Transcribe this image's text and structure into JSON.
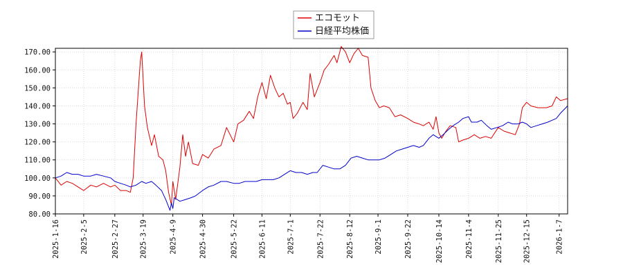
{
  "chart_data": {
    "type": "line",
    "title": "",
    "xlabel": "",
    "ylabel": "",
    "ylim": [
      80,
      172
    ],
    "xlim": [
      "2025-01-16",
      "2026-01-13"
    ],
    "grid": true,
    "legend_position": "top-center",
    "y_ticks": [
      80,
      90,
      100,
      110,
      120,
      130,
      140,
      150,
      160,
      170
    ],
    "y_tick_labels": [
      "80.00",
      "90.00",
      "100.00",
      "110.00",
      "120.00",
      "130.00",
      "140.00",
      "150.00",
      "160.00",
      "170.00"
    ],
    "x_ticks": [
      "2025-1-16",
      "2025-2-5",
      "2025-2-27",
      "2025-3-19",
      "2025-4-9",
      "2025-4-30",
      "2025-5-22",
      "2025-6-11",
      "2025-7-1",
      "2025-7-22",
      "2025-8-12",
      "2025-9-1",
      "2025-9-22",
      "2025-10-14",
      "2025-11-4",
      "2025-11-25",
      "2025-12-15",
      "2026-1-7"
    ],
    "series": [
      {
        "name": "エコモット",
        "color": "#dd0000",
        "points": [
          [
            "2025-01-16",
            100
          ],
          [
            "2025-01-20",
            96
          ],
          [
            "2025-01-24",
            98
          ],
          [
            "2025-01-28",
            97
          ],
          [
            "2025-02-01",
            95
          ],
          [
            "2025-02-05",
            93
          ],
          [
            "2025-02-10",
            96
          ],
          [
            "2025-02-14",
            95
          ],
          [
            "2025-02-19",
            97
          ],
          [
            "2025-02-24",
            95
          ],
          [
            "2025-02-27",
            96
          ],
          [
            "2025-03-03",
            93
          ],
          [
            "2025-03-07",
            93
          ],
          [
            "2025-03-10",
            92
          ],
          [
            "2025-03-12",
            100
          ],
          [
            "2025-03-14",
            130
          ],
          [
            "2025-03-17",
            165
          ],
          [
            "2025-03-18",
            170
          ],
          [
            "2025-03-20",
            140
          ],
          [
            "2025-03-22",
            128
          ],
          [
            "2025-03-25",
            118
          ],
          [
            "2025-03-27",
            124
          ],
          [
            "2025-03-30",
            112
          ],
          [
            "2025-04-02",
            110
          ],
          [
            "2025-04-04",
            104
          ],
          [
            "2025-04-06",
            92
          ],
          [
            "2025-04-08",
            85
          ],
          [
            "2025-04-09",
            98
          ],
          [
            "2025-04-11",
            88
          ],
          [
            "2025-04-14",
            106
          ],
          [
            "2025-04-16",
            124
          ],
          [
            "2025-04-18",
            112
          ],
          [
            "2025-04-20",
            120
          ],
          [
            "2025-04-23",
            108
          ],
          [
            "2025-04-27",
            107
          ],
          [
            "2025-04-30",
            113
          ],
          [
            "2025-05-04",
            111
          ],
          [
            "2025-05-08",
            116
          ],
          [
            "2025-05-13",
            118
          ],
          [
            "2025-05-17",
            128
          ],
          [
            "2025-05-22",
            120
          ],
          [
            "2025-05-25",
            130
          ],
          [
            "2025-05-29",
            132
          ],
          [
            "2025-06-02",
            137
          ],
          [
            "2025-06-05",
            133
          ],
          [
            "2025-06-08",
            145
          ],
          [
            "2025-06-11",
            153
          ],
          [
            "2025-06-14",
            144
          ],
          [
            "2025-06-17",
            157
          ],
          [
            "2025-06-20",
            150
          ],
          [
            "2025-06-23",
            145
          ],
          [
            "2025-06-26",
            147
          ],
          [
            "2025-06-29",
            141
          ],
          [
            "2025-07-01",
            142
          ],
          [
            "2025-07-03",
            133
          ],
          [
            "2025-07-06",
            136
          ],
          [
            "2025-07-10",
            142
          ],
          [
            "2025-07-13",
            138
          ],
          [
            "2025-07-15",
            158
          ],
          [
            "2025-07-18",
            145
          ],
          [
            "2025-07-22",
            153
          ],
          [
            "2025-07-25",
            160
          ],
          [
            "2025-07-28",
            163
          ],
          [
            "2025-08-01",
            168
          ],
          [
            "2025-08-03",
            164
          ],
          [
            "2025-08-06",
            173
          ],
          [
            "2025-08-09",
            170
          ],
          [
            "2025-08-12",
            164
          ],
          [
            "2025-08-15",
            169
          ],
          [
            "2025-08-18",
            172
          ],
          [
            "2025-08-21",
            168
          ],
          [
            "2025-08-25",
            167
          ],
          [
            "2025-08-27",
            150
          ],
          [
            "2025-08-30",
            143
          ],
          [
            "2025-09-02",
            139
          ],
          [
            "2025-09-05",
            140
          ],
          [
            "2025-09-09",
            139
          ],
          [
            "2025-09-13",
            134
          ],
          [
            "2025-09-17",
            135
          ],
          [
            "2025-09-22",
            133
          ],
          [
            "2025-09-26",
            131
          ],
          [
            "2025-09-30",
            130
          ],
          [
            "2025-10-03",
            129
          ],
          [
            "2025-10-07",
            131
          ],
          [
            "2025-10-10",
            127
          ],
          [
            "2025-10-12",
            134
          ],
          [
            "2025-10-14",
            125
          ],
          [
            "2025-10-16",
            122
          ],
          [
            "2025-10-19",
            126
          ],
          [
            "2025-10-22",
            129
          ],
          [
            "2025-10-26",
            128
          ],
          [
            "2025-10-28",
            120
          ],
          [
            "2025-10-31",
            121
          ],
          [
            "2025-11-04",
            122
          ],
          [
            "2025-11-08",
            124
          ],
          [
            "2025-11-12",
            122
          ],
          [
            "2025-11-16",
            123
          ],
          [
            "2025-11-20",
            122
          ],
          [
            "2025-11-25",
            128
          ],
          [
            "2025-11-29",
            126
          ],
          [
            "2025-12-03",
            125
          ],
          [
            "2025-12-07",
            124
          ],
          [
            "2025-12-10",
            130
          ],
          [
            "2025-12-12",
            139
          ],
          [
            "2025-12-15",
            142
          ],
          [
            "2025-12-18",
            140
          ],
          [
            "2025-12-23",
            139
          ],
          [
            "2025-12-29",
            139
          ],
          [
            "2026-01-02",
            140
          ],
          [
            "2026-01-05",
            145
          ],
          [
            "2026-01-08",
            143
          ],
          [
            "2026-01-13",
            144
          ]
        ]
      },
      {
        "name": "日経平均株価",
        "color": "#0000cc",
        "points": [
          [
            "2025-01-16",
            100
          ],
          [
            "2025-01-20",
            101
          ],
          [
            "2025-01-24",
            103
          ],
          [
            "2025-01-28",
            102
          ],
          [
            "2025-02-01",
            102
          ],
          [
            "2025-02-05",
            101
          ],
          [
            "2025-02-10",
            101
          ],
          [
            "2025-02-14",
            102
          ],
          [
            "2025-02-19",
            101
          ],
          [
            "2025-02-24",
            100
          ],
          [
            "2025-02-27",
            98
          ],
          [
            "2025-03-03",
            97
          ],
          [
            "2025-03-07",
            96
          ],
          [
            "2025-03-10",
            95
          ],
          [
            "2025-03-14",
            96
          ],
          [
            "2025-03-18",
            98
          ],
          [
            "2025-03-21",
            97
          ],
          [
            "2025-03-25",
            98
          ],
          [
            "2025-03-28",
            96
          ],
          [
            "2025-04-01",
            93
          ],
          [
            "2025-04-04",
            88
          ],
          [
            "2025-04-07",
            82
          ],
          [
            "2025-04-08",
            86
          ],
          [
            "2025-04-09",
            83
          ],
          [
            "2025-04-10",
            89
          ],
          [
            "2025-04-14",
            87
          ],
          [
            "2025-04-18",
            88
          ],
          [
            "2025-04-22",
            89
          ],
          [
            "2025-04-25",
            90
          ],
          [
            "2025-04-30",
            93
          ],
          [
            "2025-05-04",
            95
          ],
          [
            "2025-05-08",
            96
          ],
          [
            "2025-05-13",
            98
          ],
          [
            "2025-05-17",
            98
          ],
          [
            "2025-05-22",
            97
          ],
          [
            "2025-05-26",
            97
          ],
          [
            "2025-05-30",
            98
          ],
          [
            "2025-06-03",
            98
          ],
          [
            "2025-06-07",
            98
          ],
          [
            "2025-06-11",
            99
          ],
          [
            "2025-06-15",
            99
          ],
          [
            "2025-06-19",
            99
          ],
          [
            "2025-06-23",
            100
          ],
          [
            "2025-06-27",
            102
          ],
          [
            "2025-07-01",
            104
          ],
          [
            "2025-07-05",
            103
          ],
          [
            "2025-07-09",
            103
          ],
          [
            "2025-07-13",
            102
          ],
          [
            "2025-07-17",
            103
          ],
          [
            "2025-07-20",
            103
          ],
          [
            "2025-07-24",
            107
          ],
          [
            "2025-07-28",
            106
          ],
          [
            "2025-08-01",
            105
          ],
          [
            "2025-08-05",
            105
          ],
          [
            "2025-08-09",
            107
          ],
          [
            "2025-08-13",
            111
          ],
          [
            "2025-08-17",
            112
          ],
          [
            "2025-08-21",
            111
          ],
          [
            "2025-08-25",
            110
          ],
          [
            "2025-08-29",
            110
          ],
          [
            "2025-09-02",
            110
          ],
          [
            "2025-09-06",
            111
          ],
          [
            "2025-09-10",
            113
          ],
          [
            "2025-09-14",
            115
          ],
          [
            "2025-09-18",
            116
          ],
          [
            "2025-09-22",
            117
          ],
          [
            "2025-09-26",
            118
          ],
          [
            "2025-09-30",
            117
          ],
          [
            "2025-10-03",
            118
          ],
          [
            "2025-10-07",
            122
          ],
          [
            "2025-10-10",
            124
          ],
          [
            "2025-10-14",
            122
          ],
          [
            "2025-10-17",
            124
          ],
          [
            "2025-10-21",
            127
          ],
          [
            "2025-10-24",
            129
          ],
          [
            "2025-10-28",
            131
          ],
          [
            "2025-10-31",
            133
          ],
          [
            "2025-11-04",
            134
          ],
          [
            "2025-11-06",
            131
          ],
          [
            "2025-11-10",
            131
          ],
          [
            "2025-11-13",
            132
          ],
          [
            "2025-11-17",
            129
          ],
          [
            "2025-11-20",
            127
          ],
          [
            "2025-11-24",
            128
          ],
          [
            "2025-11-28",
            129
          ],
          [
            "2025-12-02",
            131
          ],
          [
            "2025-12-05",
            130
          ],
          [
            "2025-12-09",
            130
          ],
          [
            "2025-12-12",
            131
          ],
          [
            "2025-12-15",
            130
          ],
          [
            "2025-12-18",
            128
          ],
          [
            "2025-12-22",
            129
          ],
          [
            "2025-12-26",
            130
          ],
          [
            "2025-12-30",
            131
          ],
          [
            "2026-01-02",
            132
          ],
          [
            "2026-01-05",
            133
          ],
          [
            "2026-01-08",
            136
          ],
          [
            "2026-01-13",
            140
          ]
        ]
      }
    ]
  }
}
